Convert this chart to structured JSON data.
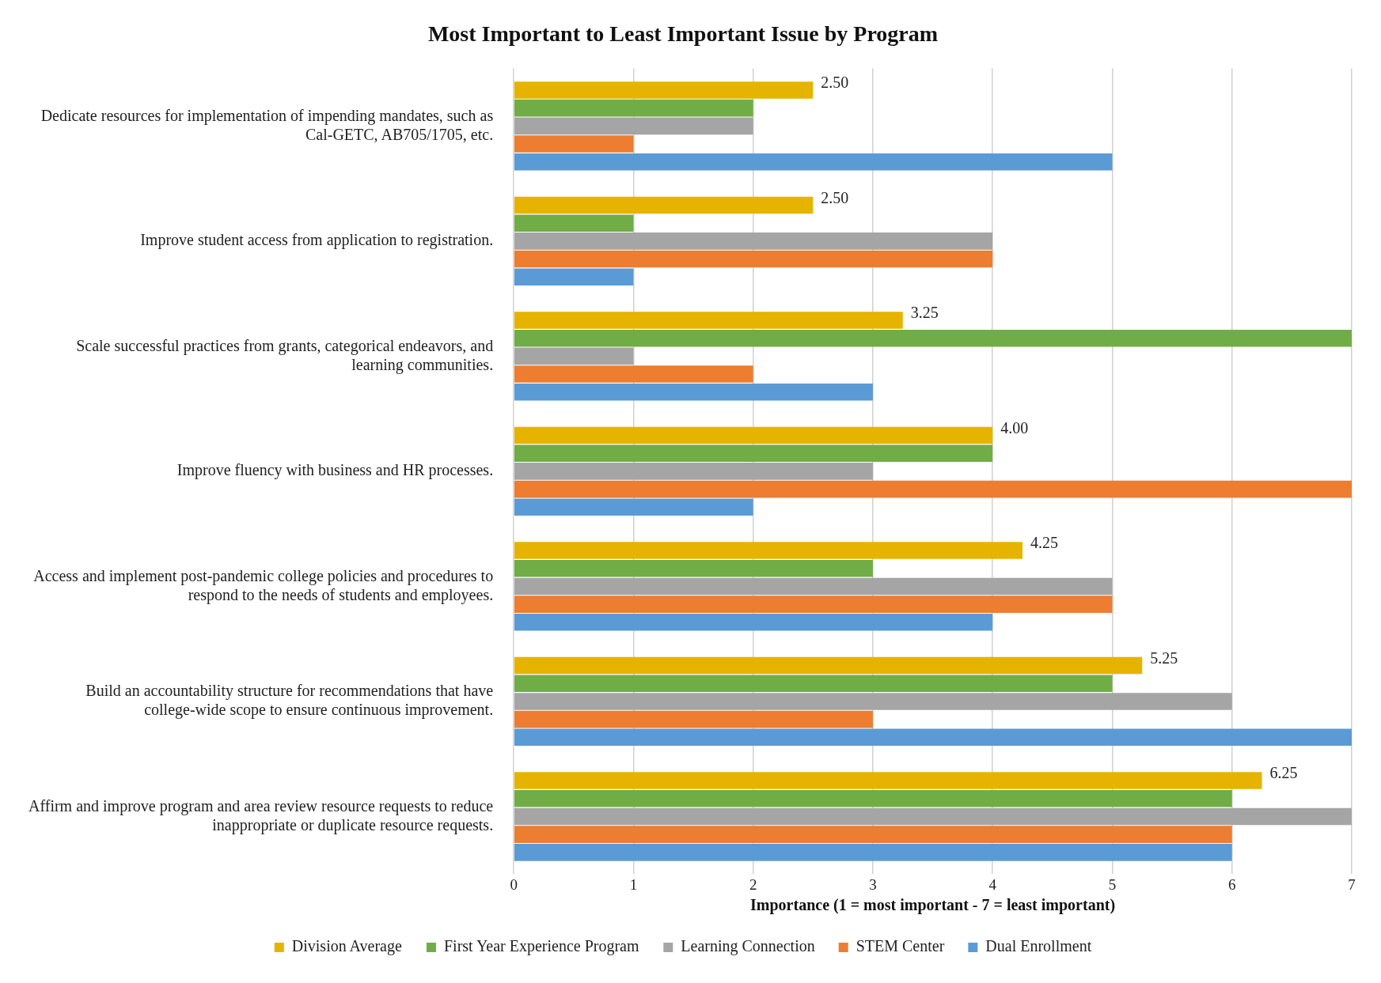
{
  "chart_data": {
    "type": "bar",
    "orientation": "horizontal",
    "title": "Most Important to Least Important Issue by Program",
    "xlabel": "Importance (1 = most important - 7 = least important)",
    "categories": [
      "Dedicate resources for implementation of impending mandates, such as Cal-GETC, AB705/1705, etc.",
      "Improve student access from application to registration.",
      "Scale successful practices from grants, categorical endeavors, and learning communities.",
      "Improve fluency with business and HR processes.",
      "Access and implement post-pandemic college policies and procedures to respond to the needs of students and employees.",
      "Build an accountability structure for recommendations that have college-wide scope to ensure continuous improvement.",
      "Affirm and improve program and area review resource requests to reduce inappropriate or duplicate resource requests."
    ],
    "series": [
      {
        "name": "Division Average",
        "color": "#e6b400",
        "values": [
          2.5,
          2.5,
          3.25,
          4,
          4.25,
          5.25,
          6.25
        ],
        "value_labels": [
          "2.50",
          "2.50",
          "3.25",
          "4.00",
          "4.25",
          "5.25",
          "6.25"
        ]
      },
      {
        "name": "First Year Experience Program",
        "color": "#70ad47",
        "values": [
          2,
          1,
          7,
          4,
          3,
          5,
          6
        ]
      },
      {
        "name": "Learning Connection",
        "color": "#a5a5a5",
        "values": [
          2,
          4,
          1,
          3,
          5,
          6,
          7
        ]
      },
      {
        "name": "STEM Center",
        "color": "#ed7d31",
        "values": [
          1,
          4,
          2,
          7,
          5,
          3,
          6
        ]
      },
      {
        "name": "Dual Enrollment",
        "color": "#5b9bd5",
        "values": [
          5,
          1,
          3,
          2,
          4,
          7,
          6
        ]
      }
    ],
    "xlim": [
      0,
      7
    ],
    "xticks": [
      0,
      1,
      2,
      3,
      4,
      5,
      6,
      7
    ],
    "grid": "x",
    "legend": "bottom"
  }
}
